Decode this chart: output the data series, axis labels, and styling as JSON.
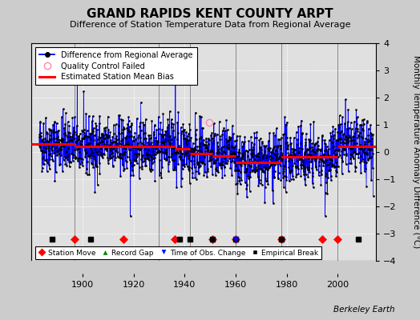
{
  "title": "GRAND RAPIDS KENT COUNTY ARPT",
  "subtitle": "Difference of Station Temperature Data from Regional Average",
  "ylabel": "Monthly Temperature Anomaly Difference (°C)",
  "credit": "Berkeley Earth",
  "xlim": [
    1880,
    2015
  ],
  "ylim": [
    -4,
    4
  ],
  "yticks": [
    -4,
    -3,
    -2,
    -1,
    0,
    1,
    2,
    3,
    4
  ],
  "xticks": [
    1900,
    1920,
    1940,
    1960,
    1980,
    2000
  ],
  "bg_color": "#cccccc",
  "plot_bg_color": "#e0e0e0",
  "bias_segments": [
    {
      "x_start": 1880,
      "x_end": 1897,
      "bias": 0.3
    },
    {
      "x_start": 1897,
      "x_end": 1916,
      "bias": 0.22
    },
    {
      "x_start": 1916,
      "x_end": 1936,
      "bias": 0.22
    },
    {
      "x_start": 1936,
      "x_end": 1942,
      "bias": 0.12
    },
    {
      "x_start": 1942,
      "x_end": 1951,
      "bias": -0.05
    },
    {
      "x_start": 1951,
      "x_end": 1960,
      "bias": -0.15
    },
    {
      "x_start": 1960,
      "x_end": 1978,
      "bias": -0.38
    },
    {
      "x_start": 1978,
      "x_end": 1994,
      "bias": -0.18
    },
    {
      "x_start": 1994,
      "x_end": 2000,
      "bias": -0.18
    },
    {
      "x_start": 2000,
      "x_end": 2015,
      "bias": 0.22
    }
  ],
  "vertical_lines": [
    1897,
    1930,
    1942,
    1960,
    1978,
    2000
  ],
  "station_moves": [
    1897,
    1916,
    1936,
    1951,
    1960,
    1978,
    1994,
    2000
  ],
  "empirical_breaks": [
    1888,
    1903,
    1938,
    1942,
    1951,
    1960,
    1978,
    2008
  ],
  "time_obs_changes": [
    1960
  ],
  "record_gaps": [],
  "qc_failed_x": [
    1949.5
  ],
  "qc_failed_y": [
    1.1
  ],
  "seed": 42
}
